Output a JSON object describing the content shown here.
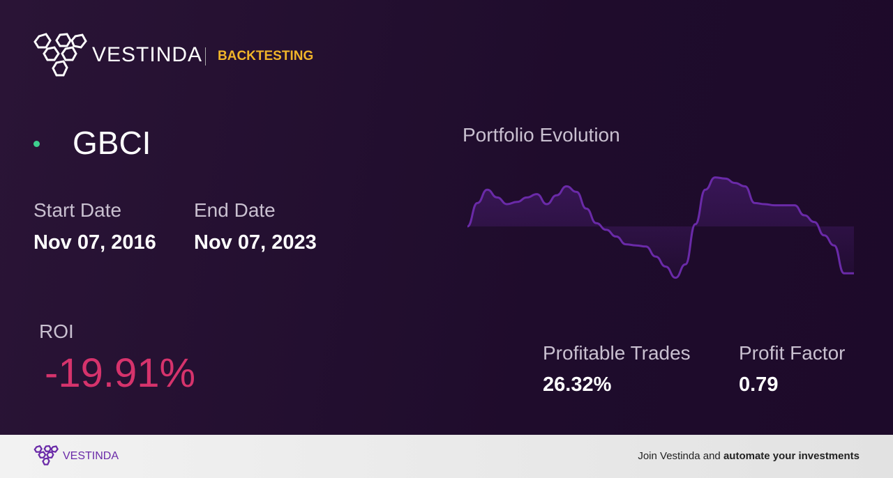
{
  "header": {
    "brand": "VESTINDA",
    "section": "BACKTESTING"
  },
  "ticker": "GBCI",
  "start_date": {
    "label": "Start Date",
    "value": "Nov 07, 2016"
  },
  "end_date": {
    "label": "End Date",
    "value": "Nov 07, 2023"
  },
  "roi": {
    "label": "ROI",
    "value": "-19.91%"
  },
  "profitable_trades": {
    "label": "Profitable Trades",
    "value": "26.32%"
  },
  "profit_factor": {
    "label": "Profit Factor",
    "value": "0.79"
  },
  "portfolio_chart": {
    "type": "line",
    "title": "Portfolio Evolution",
    "color": "#6a2aa8",
    "ylim": [
      0,
      100
    ],
    "values": [
      50,
      71,
      83,
      76,
      70,
      72,
      76,
      79,
      70,
      78,
      86,
      81,
      66,
      53,
      47,
      41,
      34,
      33,
      32,
      23,
      14,
      4,
      16,
      52,
      83,
      94,
      93,
      89,
      86,
      71,
      70,
      69,
      69,
      69,
      60,
      54,
      42,
      33,
      8,
      8
    ]
  },
  "footer": {
    "brand": "VESTINDA",
    "text": "Join Vestinda and",
    "emphasis": "automate your investments"
  }
}
